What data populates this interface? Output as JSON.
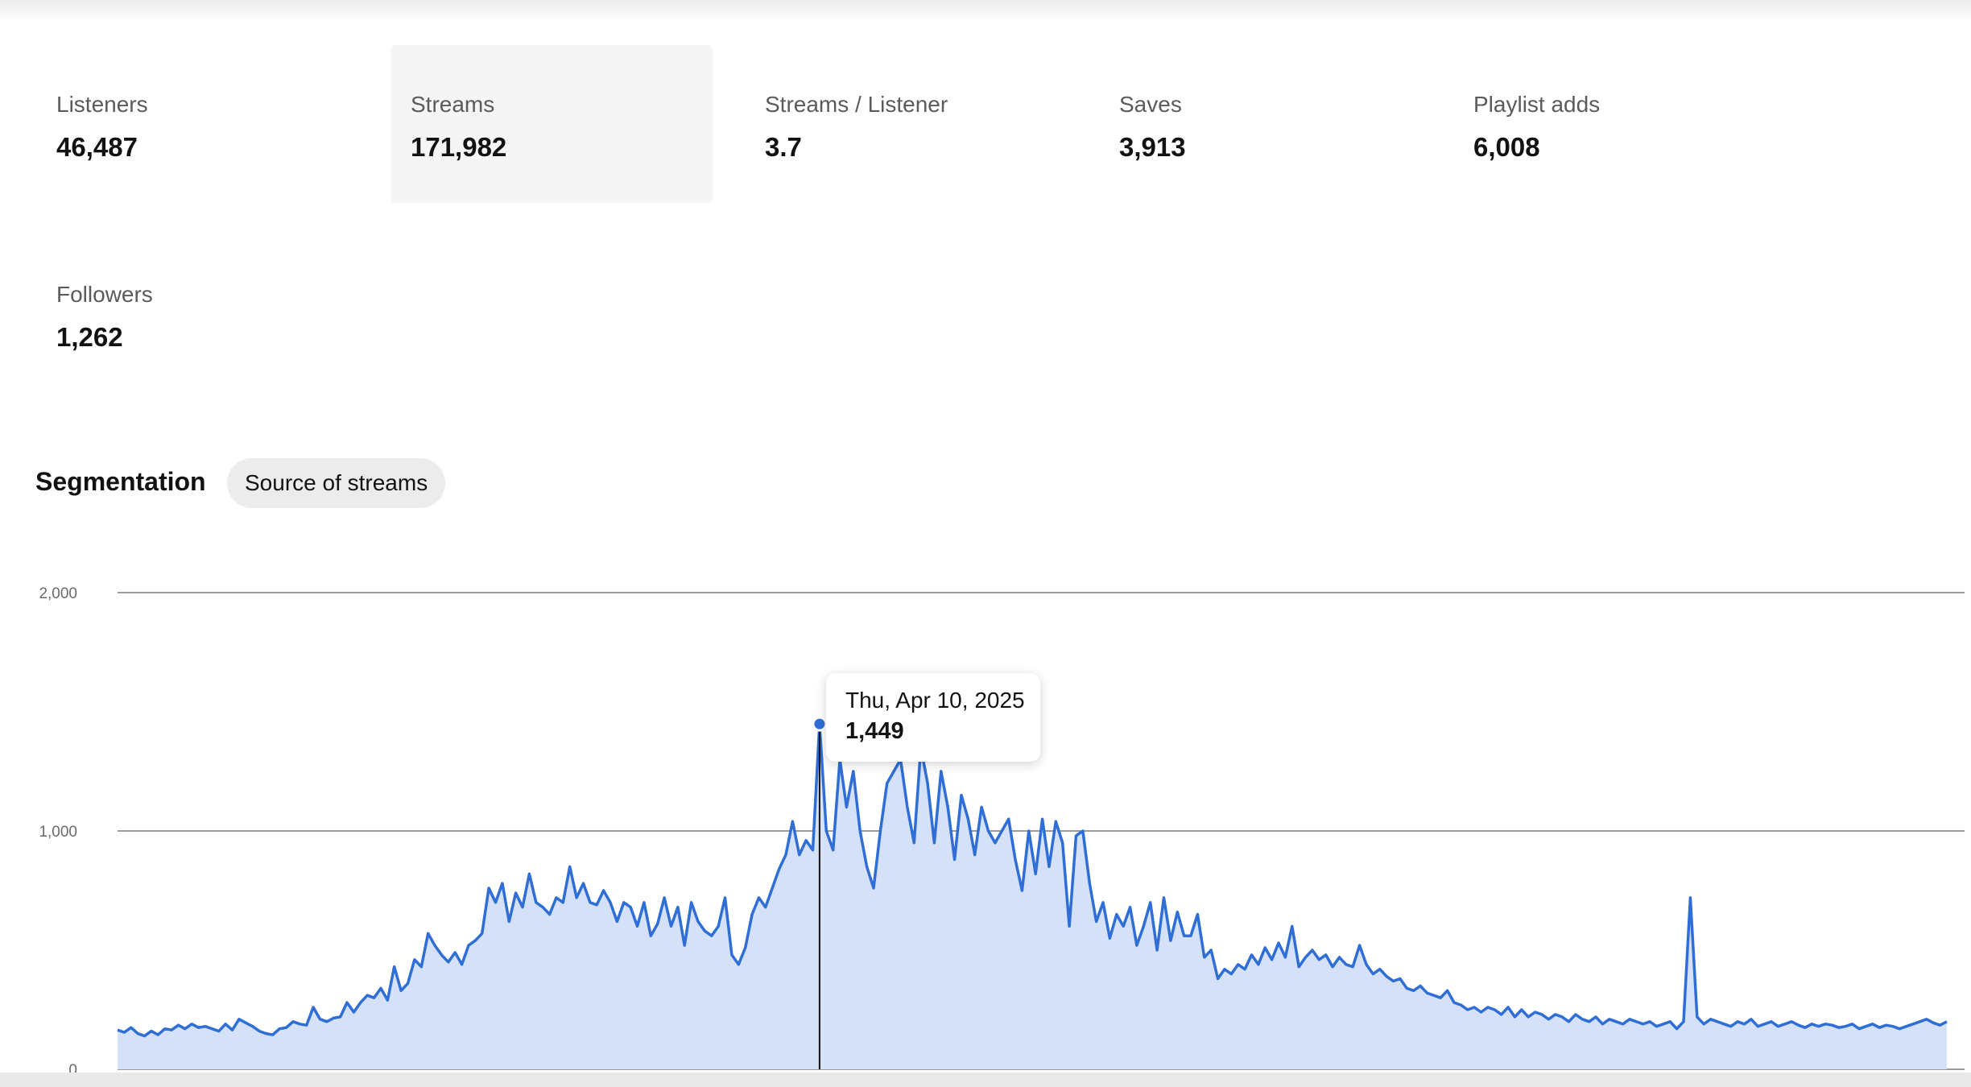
{
  "metrics": [
    {
      "label": "Listeners",
      "value": "46,487"
    },
    {
      "label": "Streams",
      "value": "171,982"
    },
    {
      "label": "Streams / Listener",
      "value": "3.7"
    },
    {
      "label": "Saves",
      "value": "3,913"
    },
    {
      "label": "Playlist adds",
      "value": "6,008"
    },
    {
      "label": "Followers",
      "value": "1,262"
    }
  ],
  "segmentation": {
    "title": "Segmentation",
    "chip_label": "Source of streams"
  },
  "tooltip": {
    "date": "Thu, Apr 10, 2025",
    "value": "1,449"
  },
  "colors": {
    "line": "#2e6ed6",
    "fill": "#d5e1f8",
    "selected_card": "#f5f5f5",
    "gridline": "#7a7a7a"
  },
  "chart_data": {
    "type": "area",
    "title": "",
    "xlabel": "",
    "ylabel": "",
    "ylim": [
      0,
      2000
    ],
    "y_ticks": [
      "0",
      "1,000",
      "2,000"
    ],
    "grid": true,
    "highlight": {
      "label": "Thu, Apr 10, 2025",
      "value": 1449
    },
    "series": [
      {
        "values": [
          165,
          155,
          175,
          150,
          140,
          160,
          145,
          170,
          165,
          185,
          170,
          190,
          175,
          180,
          170,
          160,
          190,
          165,
          210,
          195,
          180,
          160,
          150,
          145,
          170,
          175,
          200,
          190,
          185,
          260,
          210,
          200,
          215,
          220,
          280,
          240,
          280,
          310,
          300,
          340,
          290,
          430,
          330,
          360,
          460,
          430,
          570,
          520,
          480,
          450,
          490,
          440,
          520,
          540,
          570,
          760,
          700,
          780,
          620,
          740,
          680,
          820,
          700,
          680,
          650,
          720,
          700,
          850,
          720,
          780,
          700,
          690,
          750,
          700,
          620,
          700,
          680,
          600,
          700,
          560,
          610,
          720,
          600,
          680,
          520,
          700,
          620,
          580,
          560,
          600,
          720,
          480,
          440,
          510,
          650,
          720,
          680,
          760,
          840,
          900,
          1040,
          900,
          960,
          920,
          1449,
          1000,
          920,
          1300,
          1100,
          1250,
          1000,
          850,
          760,
          1000,
          1200,
          1250,
          1300,
          1100,
          950,
          1350,
          1200,
          950,
          1250,
          1100,
          880,
          1150,
          1050,
          900,
          1100,
          1000,
          950,
          1000,
          1050,
          880,
          750,
          1000,
          820,
          1050,
          850,
          1040,
          950,
          600,
          980,
          1000,
          780,
          620,
          700,
          550,
          650,
          600,
          680,
          520,
          600,
          700,
          500,
          720,
          540,
          660,
          560,
          560,
          650,
          470,
          500,
          380,
          420,
          400,
          440,
          420,
          480,
          440,
          510,
          460,
          530,
          470,
          600,
          430,
          470,
          500,
          460,
          480,
          430,
          470,
          440,
          430,
          520,
          440,
          400,
          420,
          390,
          370,
          380,
          340,
          330,
          350,
          320,
          310,
          300,
          330,
          280,
          270,
          250,
          260,
          240,
          260,
          250,
          230,
          260,
          220,
          250,
          220,
          240,
          230,
          210,
          230,
          220,
          200,
          230,
          210,
          200,
          220,
          190,
          210,
          200,
          190,
          210,
          200,
          190,
          200,
          180,
          190,
          200,
          170,
          200,
          720,
          220,
          190,
          210,
          200,
          190,
          180,
          200,
          190,
          210,
          180,
          190,
          200,
          180,
          190,
          200,
          185,
          175,
          190,
          180,
          190,
          185,
          175,
          180,
          190,
          170,
          180,
          190,
          175,
          185,
          180,
          170,
          180,
          190,
          200,
          210,
          195,
          185,
          200
        ]
      }
    ]
  }
}
